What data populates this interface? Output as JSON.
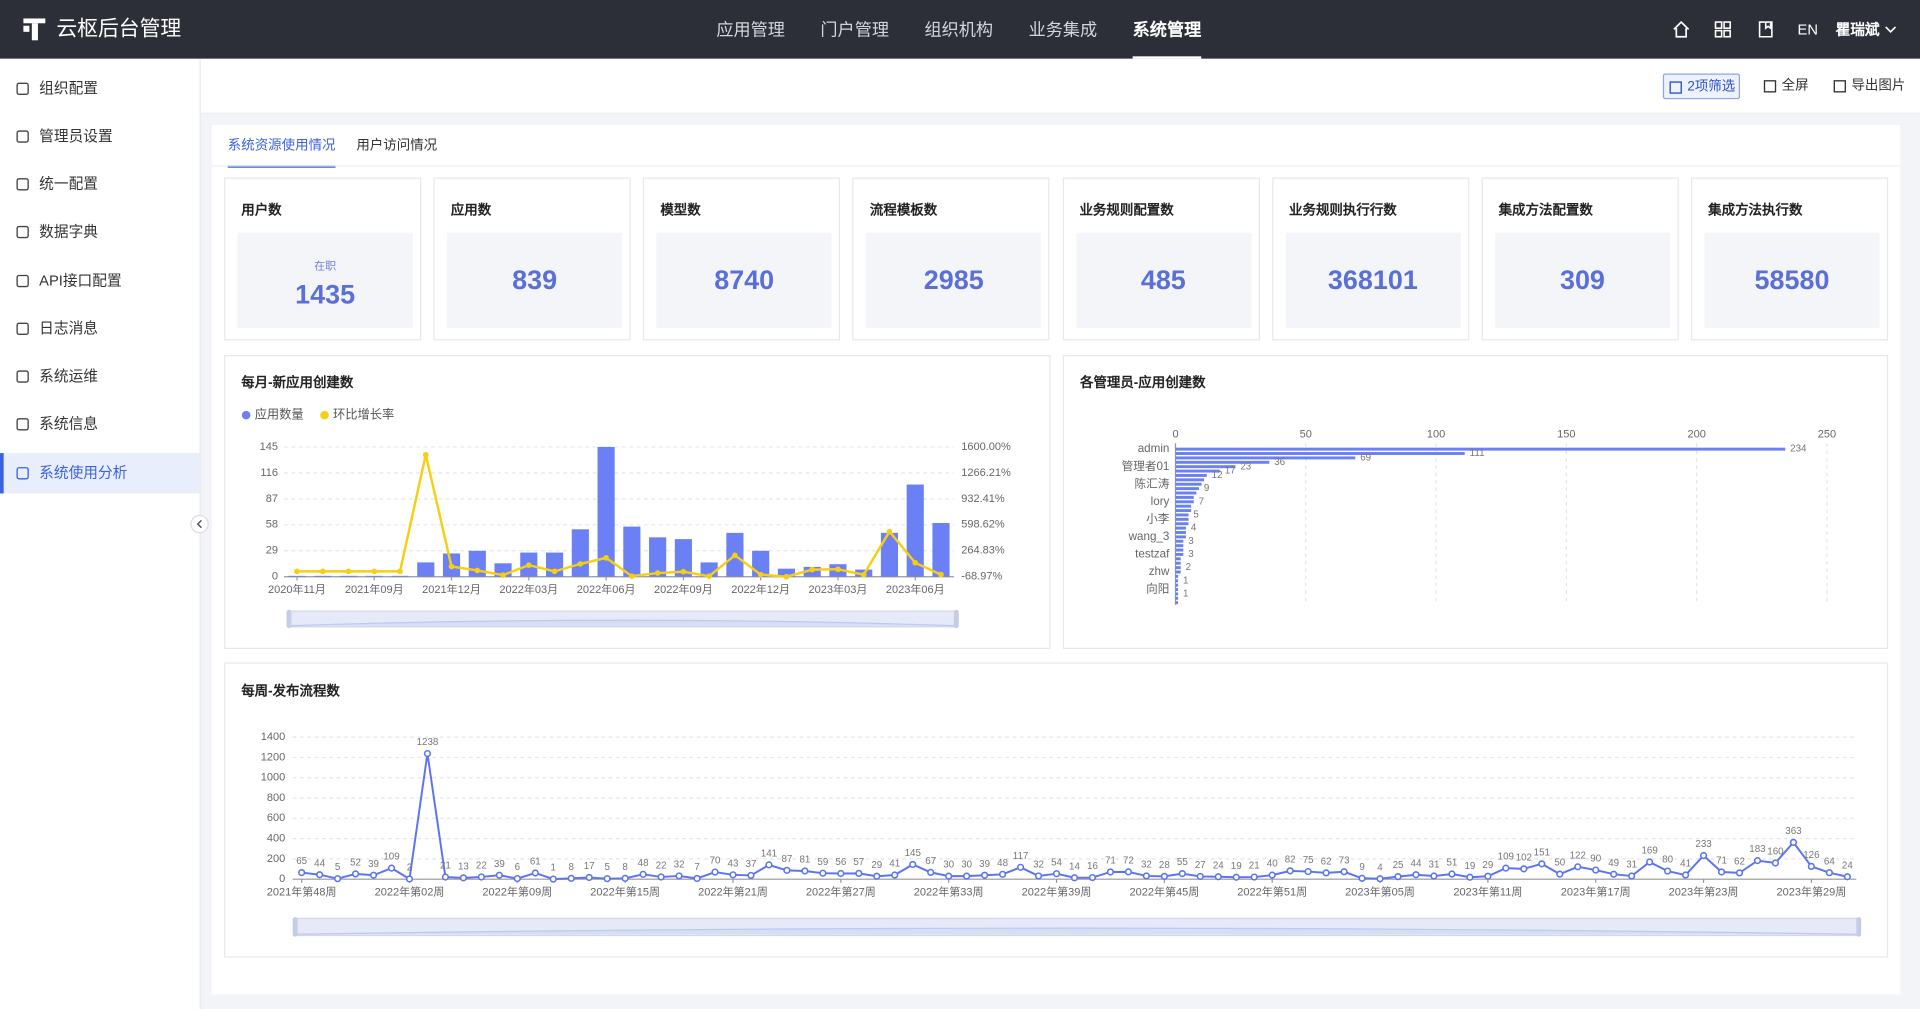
{
  "header": {
    "logo": "云枢后台管理",
    "nav": [
      {
        "label": "应用管理"
      },
      {
        "label": "门户管理"
      },
      {
        "label": "组织机构"
      },
      {
        "label": "业务集成"
      },
      {
        "label": "系统管理",
        "active": true
      }
    ],
    "lang": "EN",
    "user": "瞿瑞斌"
  },
  "sidebar": {
    "items": [
      {
        "label": "组织配置"
      },
      {
        "label": "管理员设置"
      },
      {
        "label": "统一配置"
      },
      {
        "label": "数据字典"
      },
      {
        "label": "API接口配置"
      },
      {
        "label": "日志消息"
      },
      {
        "label": "系统运维"
      },
      {
        "label": "系统信息"
      },
      {
        "label": "系统使用分析",
        "active": true
      }
    ]
  },
  "toolbar": {
    "buttons": [
      "2项筛选",
      "全屏",
      "导出图片"
    ]
  },
  "tabs": [
    {
      "label": "系统资源使用情况",
      "active": true
    },
    {
      "label": "用户访问情况"
    }
  ],
  "stats": [
    {
      "title": "用户数",
      "value": 1435,
      "note": "在职"
    },
    {
      "title": "应用数",
      "value": 839
    },
    {
      "title": "模型数",
      "value": 8740
    },
    {
      "title": "流程模板数",
      "value": 2985
    },
    {
      "title": "业务规则配置数",
      "value": 485
    },
    {
      "title": "业务规则执行行数",
      "value": 368101
    },
    {
      "title": "集成方法配置数",
      "value": 309
    },
    {
      "title": "集成方法执行数",
      "value": 58580
    }
  ],
  "chart_data": [
    {
      "type": "bar",
      "title": "每月-新应用创建数",
      "categories": [
        "2020年11月",
        null,
        null,
        "2021年09月",
        null,
        null,
        "2021年12月",
        null,
        null,
        "2022年03月",
        null,
        null,
        "2022年06月",
        null,
        null,
        "2022年09月",
        null,
        null,
        "2022年12月",
        null,
        null,
        "2023年03月",
        null,
        null,
        "2023年06月",
        null
      ],
      "series": [
        {
          "name": "应用数量",
          "type": "bar",
          "color": "#6a80f4",
          "values": [
            1,
            1,
            1,
            1,
            1,
            16,
            26,
            29,
            15,
            27,
            27,
            53,
            145,
            56,
            44,
            42,
            16,
            49,
            29,
            9,
            11,
            14,
            8,
            49,
            103,
            60
          ]
        },
        {
          "name": "环比增长率",
          "type": "line",
          "axis": "y2",
          "color": "#f7cf12",
          "values": [
            0,
            0,
            0,
            0,
            0,
            1500,
            62.5,
            11.54,
            -48.28,
            80,
            0,
            96.3,
            173.58,
            -61.38,
            -21.43,
            -4.55,
            -61.9,
            206.25,
            -40.82,
            -68.97,
            22.22,
            27.27,
            -42.86,
            512.5,
            110.2,
            -41.75
          ]
        }
      ],
      "ylim": [
        0,
        145
      ],
      "yticks": [
        0,
        29,
        58,
        87,
        116,
        145
      ],
      "y2lim": [
        -68.97,
        1600
      ],
      "y2ticks": [
        {
          "value": -68.97,
          "label": "-68.97%"
        },
        {
          "value": 264.83,
          "label": "264.83%"
        },
        {
          "value": 598.62,
          "label": "598.62%"
        },
        {
          "value": 932.41,
          "label": "932.41%"
        },
        {
          "value": 1266.21,
          "label": "1266.21%"
        },
        {
          "value": 1600,
          "label": "1600.00%"
        }
      ],
      "grid": true,
      "legend": "top-left"
    },
    {
      "type": "hbar",
      "title": "各管理员-应用创建数",
      "categories": [
        "admin",
        null,
        null,
        null,
        "管理者01",
        null,
        null,
        null,
        "陈汇涛",
        null,
        null,
        null,
        "lory",
        null,
        null,
        null,
        "小李",
        null,
        null,
        null,
        "wang_3",
        null,
        null,
        null,
        "testzaf",
        null,
        null,
        null,
        "zhw",
        null,
        null,
        null,
        "向阳",
        null,
        null,
        null
      ],
      "values": [
        234,
        111,
        69,
        36,
        23,
        17,
        12,
        11,
        10,
        9,
        8,
        7,
        7,
        6,
        6,
        5,
        5,
        5,
        4,
        4,
        4,
        3,
        3,
        3,
        3,
        2,
        2,
        2,
        2,
        1,
        1,
        1,
        1,
        1,
        1,
        1
      ],
      "color": "#6a80f4",
      "xlim": [
        0,
        250
      ],
      "xticks": [
        0,
        50,
        100,
        150,
        200,
        250
      ],
      "grid": true
    },
    {
      "type": "line",
      "title": "每周-发布流程数",
      "categories": [
        "2021年第48周",
        null,
        null,
        null,
        null,
        null,
        "2022年第02周",
        null,
        null,
        null,
        null,
        null,
        "2022年第09周",
        null,
        null,
        null,
        null,
        null,
        "2022年第15周",
        null,
        null,
        null,
        null,
        null,
        "2022年第21周",
        null,
        null,
        null,
        null,
        null,
        "2022年第27周",
        null,
        null,
        null,
        null,
        null,
        "2022年第33周",
        null,
        null,
        null,
        null,
        null,
        "2022年第39周",
        null,
        null,
        null,
        null,
        null,
        "2022年第45周",
        null,
        null,
        null,
        null,
        null,
        "2022年第51周",
        null,
        null,
        null,
        null,
        null,
        "2023年第05周",
        null,
        null,
        null,
        null,
        null,
        "2023年第11周",
        null,
        null,
        null,
        null,
        null,
        "2023年第17周",
        null,
        null,
        null,
        null,
        null,
        "2023年第23周",
        null,
        null,
        null,
        null,
        null,
        "2023年第29周",
        null,
        null
      ],
      "values": [
        65,
        44,
        5,
        52,
        39,
        109,
        2,
        1238,
        21,
        13,
        22,
        39,
        6,
        61,
        1,
        8,
        17,
        5,
        8,
        48,
        22,
        32,
        7,
        70,
        43,
        37,
        141,
        87,
        81,
        59,
        56,
        57,
        29,
        41,
        145,
        67,
        30,
        30,
        39,
        48,
        117,
        32,
        54,
        14,
        16,
        71,
        72,
        32,
        28,
        55,
        27,
        24,
        19,
        21,
        40,
        82,
        75,
        62,
        73,
        9,
        4,
        25,
        44,
        31,
        51,
        19,
        29,
        109,
        102,
        151,
        50,
        122,
        90,
        49,
        31,
        169,
        80,
        41,
        233,
        71,
        62,
        183,
        160,
        363,
        126,
        64,
        24
      ],
      "color": "#5b74f0",
      "ylim": [
        0,
        1400
      ],
      "yticks": [
        0,
        200,
        400,
        600,
        800,
        1000,
        1200,
        1400
      ],
      "grid": true
    }
  ]
}
